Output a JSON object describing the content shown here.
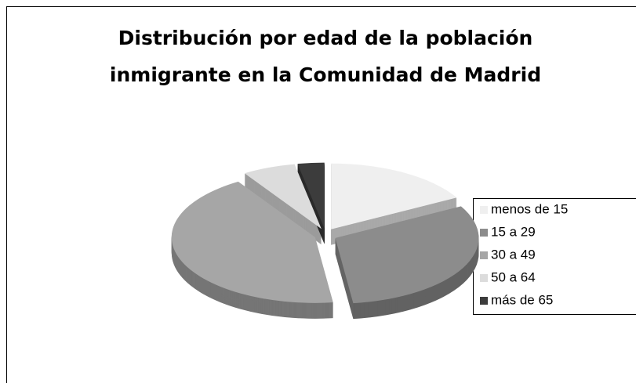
{
  "chart_data": {
    "type": "pie",
    "title": "Distribución por edad de la población inmigrante en la Comunidad de Madrid",
    "categories": [
      "menos de 15",
      "15 a 29",
      "30 a 49",
      "50 a 64",
      "más de 65"
    ],
    "values": [
      17,
      31,
      43,
      6,
      3
    ],
    "colors": [
      "#efefef",
      "#8c8c8c",
      "#a6a6a6",
      "#dcdcdc",
      "#3c3c3c"
    ],
    "legend": "right"
  }
}
